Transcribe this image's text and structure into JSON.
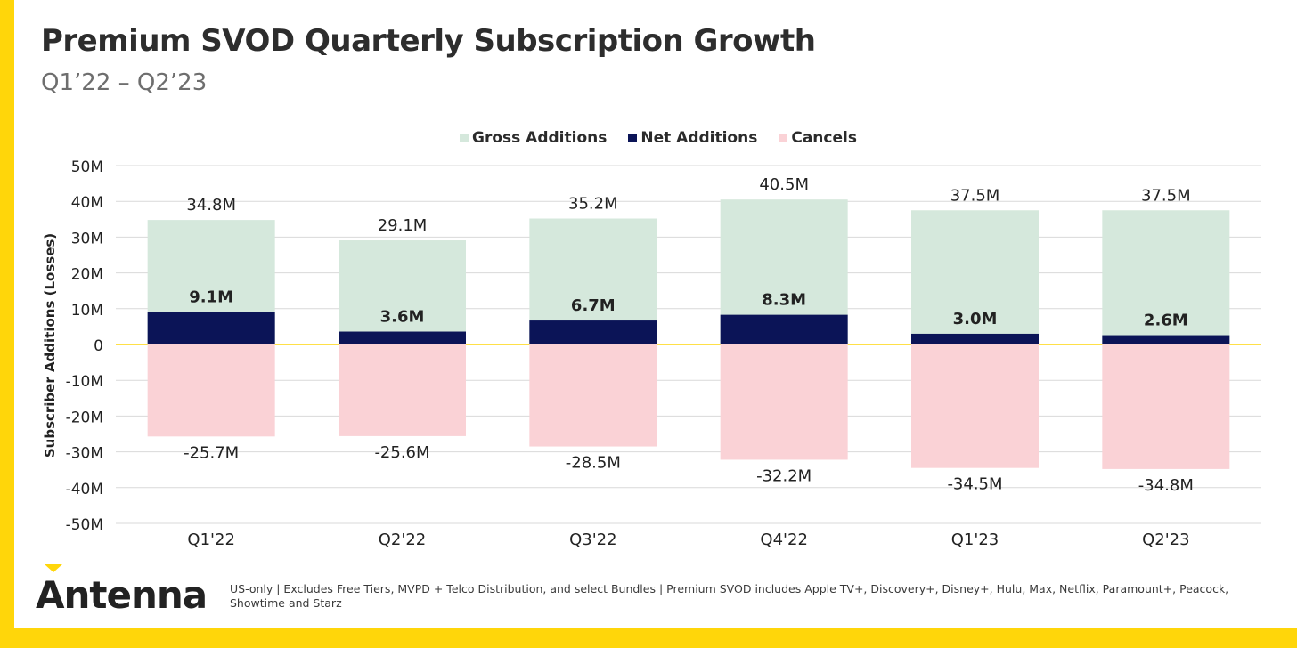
{
  "header": {
    "title": "Premium SVOD Quarterly Subscription Growth",
    "subtitle": "Q1’22 – Q2’23"
  },
  "legend": [
    {
      "name": "Gross Additions",
      "color": "#D5E8DC"
    },
    {
      "name": "Net Additions",
      "color": "#0B1457"
    },
    {
      "name": "Cancels",
      "color": "#FAD2D6"
    }
  ],
  "chart_data": {
    "type": "bar",
    "stacked": true,
    "ylabel": "Subscriber Additions (Losses)",
    "ylim": [
      -50,
      50
    ],
    "yticks": [
      50,
      40,
      30,
      20,
      10,
      0,
      -10,
      -20,
      -30,
      -40,
      -50
    ],
    "ytick_labels": [
      "50M",
      "40M",
      "30M",
      "20M",
      "10M",
      "0",
      "-10M",
      "-20M",
      "-30M",
      "-40M",
      "-50M"
    ],
    "categories": [
      "Q1'22",
      "Q2'22",
      "Q3'22",
      "Q4'22",
      "Q1'23",
      "Q2'23"
    ],
    "series": [
      {
        "name": "Gross Additions",
        "values": [
          34.8,
          29.1,
          35.2,
          40.5,
          37.5,
          37.5
        ],
        "labels": [
          "34.8M",
          "29.1M",
          "35.2M",
          "40.5M",
          "37.5M",
          "37.5M"
        ]
      },
      {
        "name": "Net Additions",
        "values": [
          9.1,
          3.6,
          6.7,
          8.3,
          3.0,
          2.6
        ],
        "labels": [
          "9.1M",
          "3.6M",
          "6.7M",
          "8.3M",
          "3.0M",
          "2.6M"
        ]
      },
      {
        "name": "Cancels",
        "values": [
          -25.7,
          -25.6,
          -28.5,
          -32.2,
          -34.5,
          -34.8
        ],
        "labels": [
          "-25.7M",
          "-25.6M",
          "-28.5M",
          "-32.2M",
          "-34.5M",
          "-34.8M"
        ]
      }
    ],
    "grid": true,
    "zero_line_color": "#FFD60A",
    "legend_position": "top"
  },
  "brand": {
    "logo_text": "Antenna",
    "accent_color": "#FFD60A"
  },
  "footnote": "US-only | Excludes Free Tiers, MVPD + Telco Distribution, and select Bundles | Premium SVOD includes Apple TV+, Discovery+, Disney+, Hulu, Max, Netflix, Paramount+, Peacock, Showtime and Starz"
}
